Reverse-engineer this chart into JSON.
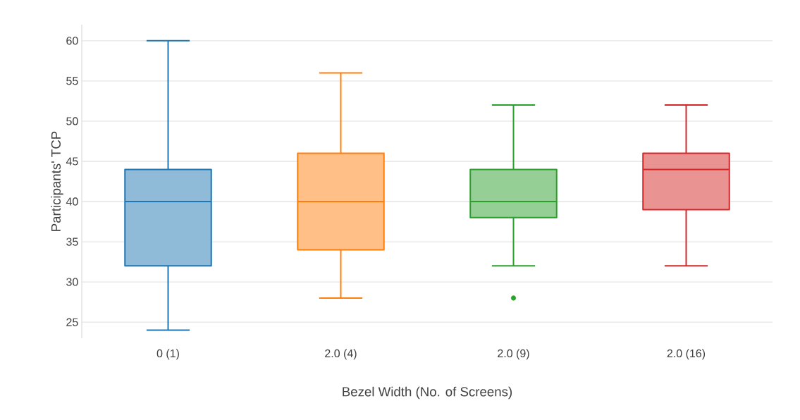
{
  "chart_data": {
    "type": "box",
    "xlabel": "Bezel Width (No. of Screens)",
    "ylabel": "Participants' TCP",
    "categories": [
      "0 (1)",
      "2.0 (4)",
      "2.0 (9)",
      "2.0 (16)"
    ],
    "boxes": [
      {
        "low": 24,
        "q1": 32,
        "median": 40,
        "q3": 44,
        "high": 60
      },
      {
        "low": 28,
        "q1": 34,
        "median": 40,
        "q3": 46,
        "high": 56
      },
      {
        "low": 32,
        "q1": 38,
        "median": 40,
        "q3": 44,
        "high": 52,
        "outliers": [
          28
        ]
      },
      {
        "low": 32,
        "q1": 39,
        "median": 44,
        "q3": 46,
        "high": 52
      }
    ],
    "colors": [
      "#1f77b4",
      "#ff7f0e",
      "#2ca02c",
      "#d62728"
    ],
    "ylim": [
      23,
      62
    ],
    "yticks": [
      25,
      30,
      35,
      40,
      45,
      50,
      55,
      60
    ],
    "grid": "y"
  }
}
